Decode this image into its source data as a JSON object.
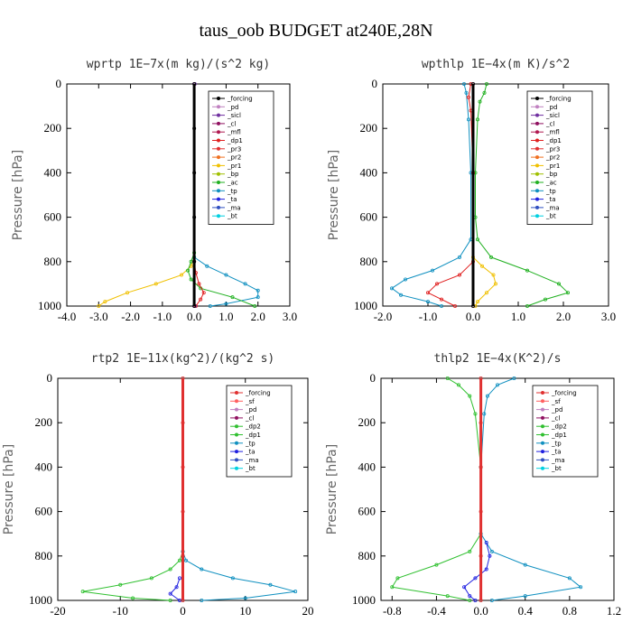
{
  "figure_title": "taus_oob  BUDGET at240E,28N",
  "colors": {
    "_forcing": "#000000",
    "_pd": "#c080c0",
    "_sicl": "#7030a0",
    "_cl": "#901060",
    "_mfl": "#b01850",
    "_dp1": "#e02020",
    "_pr3": "#e03030",
    "_pr2": "#f07020",
    "_pr1": "#f0c000",
    "_bp": "#a0c000",
    "_ac": "#20b020",
    "_tp": "#1090c0",
    "_ta": "#2020e0",
    "_ma": "#3050c0",
    "_bt": "#00d0e0",
    "_sf": "#ff6060",
    "_dp2": "#30c030",
    "red_forcing": "#e03030"
  },
  "chart_data": [
    {
      "type": "line",
      "title": "wprtp  1E−7x(m kg)/(s^2 kg)",
      "ylabel": "Pressure [hPa]",
      "xlim": [
        -4,
        3
      ],
      "ylim": [
        1000,
        0
      ],
      "xticks": [
        "-4.0",
        "-3.0",
        "-2.0",
        "-1.0",
        "0.0",
        "1.0",
        "2.0",
        "3.0"
      ],
      "yticks": [
        "0",
        "200",
        "400",
        "600",
        "800",
        "1000"
      ],
      "legend": [
        "_forcing",
        "_pd",
        "_sicl",
        "_cl",
        "_mfl",
        "_dp1",
        "_pr3",
        "_pr2",
        "_pr1",
        "_bp",
        "_ac",
        "_tp",
        "_ta",
        "_ma",
        "_bt"
      ],
      "series": [
        {
          "name": "_pr1",
          "color": "#f0c000",
          "y": [
            780,
            820,
            860,
            900,
            940,
            980,
            1000
          ],
          "x": [
            0,
            -0.1,
            -0.4,
            -1.2,
            -2.1,
            -2.8,
            -3.0
          ]
        },
        {
          "name": "_tp",
          "color": "#1090c0",
          "y": [
            780,
            820,
            860,
            900,
            930,
            960,
            990,
            1000
          ],
          "x": [
            0,
            0.4,
            1.0,
            1.6,
            2.0,
            2.0,
            1.0,
            0.5
          ]
        },
        {
          "name": "_ac",
          "color": "#20b020",
          "y": [
            760,
            800,
            840,
            880,
            920,
            960,
            1000
          ],
          "x": [
            0,
            -0.1,
            -0.2,
            -0.1,
            0.2,
            1.2,
            1.9
          ]
        },
        {
          "name": "_dp1",
          "color": "#e02020",
          "y": [
            800,
            850,
            900,
            940,
            970,
            1000
          ],
          "x": [
            0,
            0.05,
            0.15,
            0.3,
            0.2,
            0.05
          ]
        },
        {
          "name": "_pd",
          "color": "#c080c0",
          "y": [
            0,
            1000
          ],
          "x": [
            0,
            0
          ]
        },
        {
          "name": "_sicl",
          "color": "#7030a0",
          "y": [
            0,
            1000
          ],
          "x": [
            0.02,
            0.02
          ]
        },
        {
          "name": "_forcing",
          "color": "#000000",
          "y": [
            0,
            200,
            400,
            600,
            800,
            1000
          ],
          "x": [
            0,
            0,
            0,
            0,
            0,
            0
          ]
        }
      ]
    },
    {
      "type": "line",
      "title": "wpthlp  1E−4x(m K)/s^2",
      "ylabel": "Pressure [hPa]",
      "xlim": [
        -2,
        3
      ],
      "ylim": [
        1000,
        0
      ],
      "xticks": [
        "-2.0",
        "-1.0",
        "0.0",
        "1.0",
        "2.0",
        "3.0"
      ],
      "yticks": [
        "0",
        "200",
        "400",
        "600",
        "800",
        "1000"
      ],
      "legend": [
        "_forcing",
        "_pd",
        "_sicl",
        "_cl",
        "_mfl",
        "_dp1",
        "_pr3",
        "_pr2",
        "_pr1",
        "_bp",
        "_ac",
        "_tp",
        "_ta",
        "_ma",
        "_bt"
      ],
      "series": [
        {
          "name": "_ac",
          "color": "#20b020",
          "y": [
            0,
            40,
            80,
            160,
            400,
            600,
            700,
            780,
            840,
            900,
            940,
            970,
            1000
          ],
          "x": [
            0.3,
            0.25,
            0.15,
            0.1,
            0.05,
            0.05,
            0.1,
            0.4,
            1.2,
            1.9,
            2.1,
            1.6,
            1.2
          ]
        },
        {
          "name": "_tp",
          "color": "#1090c0",
          "y": [
            0,
            40,
            160,
            400,
            700,
            780,
            840,
            880,
            920,
            950,
            980,
            1000
          ],
          "x": [
            -0.2,
            -0.15,
            -0.1,
            -0.05,
            -0.05,
            -0.3,
            -0.9,
            -1.5,
            -1.8,
            -1.6,
            -1.0,
            -0.7
          ]
        },
        {
          "name": "_dp1",
          "color": "#e02020",
          "y": [
            0,
            60,
            120,
            400,
            800,
            860,
            900,
            940,
            970,
            1000
          ],
          "x": [
            -0.05,
            -0.1,
            -0.05,
            0,
            0,
            -0.3,
            -0.8,
            -1.0,
            -0.7,
            -0.4
          ]
        },
        {
          "name": "_pr1",
          "color": "#f0c000",
          "y": [
            780,
            820,
            860,
            900,
            940,
            980,
            1000
          ],
          "x": [
            0,
            0.2,
            0.45,
            0.5,
            0.3,
            0.1,
            0.05
          ]
        },
        {
          "name": "_pd",
          "color": "#c080c0",
          "y": [
            0,
            1000
          ],
          "x": [
            0,
            0
          ]
        },
        {
          "name": "_forcing",
          "color": "#000000",
          "y": [
            0,
            1000
          ],
          "x": [
            0,
            0
          ]
        }
      ]
    },
    {
      "type": "line",
      "title": "rtp2  1E−11x(kg^2)/(kg^2 s)",
      "ylabel": "Pressure [hPa]",
      "xlim": [
        -20,
        20
      ],
      "ylim": [
        1000,
        0
      ],
      "xticks": [
        "-20",
        "-10",
        "0",
        "10",
        "20"
      ],
      "yticks": [
        "0",
        "200",
        "400",
        "600",
        "800",
        "1000"
      ],
      "legend": [
        "_forcing",
        "_sf",
        "_pd",
        "_cl",
        "_dp2",
        "_dp1",
        "_tp",
        "_ta",
        "_ma",
        "_bt"
      ],
      "series": [
        {
          "name": "_dp1",
          "color": "#30c030",
          "y": [
            780,
            820,
            860,
            900,
            930,
            960,
            990,
            1000
          ],
          "x": [
            0,
            -0.5,
            -2,
            -5,
            -10,
            -16,
            -8,
            -2
          ]
        },
        {
          "name": "_tp",
          "color": "#1090c0",
          "y": [
            780,
            820,
            860,
            900,
            930,
            960,
            990,
            1000
          ],
          "x": [
            0,
            0.5,
            3,
            8,
            14,
            18,
            10,
            3
          ]
        },
        {
          "name": "_ta",
          "color": "#2020e0",
          "y": [
            900,
            940,
            970,
            1000
          ],
          "x": [
            -0.5,
            -1,
            -2,
            -0.5
          ]
        },
        {
          "name": "_forcing",
          "color": "#e03030",
          "y": [
            0,
            200,
            400,
            600,
            800,
            1000
          ],
          "x": [
            0,
            0,
            0,
            0,
            0,
            0
          ]
        }
      ]
    },
    {
      "type": "line",
      "title": "thlp2  1E−4x(K^2)/s",
      "ylabel": "Pressure [hPa]",
      "xlim": [
        -0.9,
        1.2
      ],
      "ylim": [
        1000,
        0
      ],
      "xticks": [
        "-0.8",
        "-0.4",
        "0.0",
        "0.4",
        "0.8",
        "1.2"
      ],
      "yticks": [
        "0",
        "200",
        "400",
        "600",
        "800",
        "1000"
      ],
      "legend": [
        "_forcing",
        "_sf",
        "_pd",
        "_cl",
        "_dp2",
        "_dp1",
        "_tp",
        "_ta",
        "_ma",
        "_bt"
      ],
      "series": [
        {
          "name": "_dp1",
          "color": "#30c030",
          "y": [
            0,
            30,
            80,
            160,
            400,
            700,
            780,
            840,
            900,
            940,
            980,
            1000
          ],
          "x": [
            -0.3,
            -0.2,
            -0.1,
            -0.05,
            0,
            0,
            -0.1,
            -0.4,
            -0.75,
            -0.8,
            -0.3,
            -0.1
          ]
        },
        {
          "name": "_tp",
          "color": "#1090c0",
          "y": [
            0,
            30,
            80,
            160,
            400,
            700,
            780,
            840,
            900,
            940,
            980,
            1000
          ],
          "x": [
            0.3,
            0.15,
            0.06,
            0.03,
            0,
            0,
            0.1,
            0.4,
            0.8,
            0.9,
            0.4,
            0.1
          ]
        },
        {
          "name": "_ta",
          "color": "#2020e0",
          "y": [
            740,
            800,
            860,
            900,
            940,
            980,
            1000
          ],
          "x": [
            0.05,
            0.08,
            0.05,
            -0.05,
            -0.15,
            -0.1,
            -0.05
          ]
        },
        {
          "name": "_forcing",
          "color": "#e03030",
          "y": [
            0,
            200,
            400,
            600,
            800,
            1000
          ],
          "x": [
            0,
            0,
            0,
            0,
            0,
            0
          ]
        }
      ]
    }
  ]
}
